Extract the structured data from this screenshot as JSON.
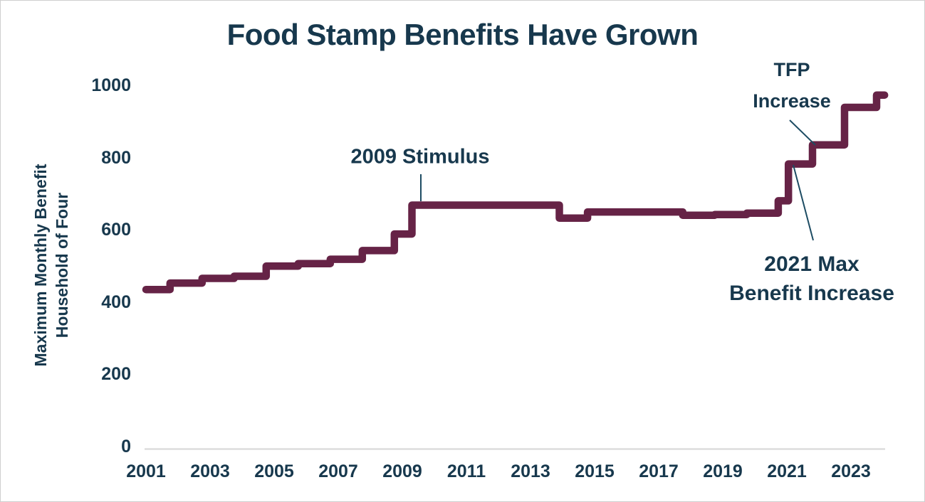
{
  "colors": {
    "text": "#17384d",
    "line": "#662346",
    "leader": "#1d4c63",
    "axis_line": "#d9d9d9",
    "background": "#ffffff"
  },
  "chart_data": {
    "type": "line",
    "style": "step",
    "title": "Food Stamp Benefits Have Grown",
    "ylabel": "Maximum Monthly Benefit Household of Four",
    "ylabel_lines": [
      "Maximum Monthly Benefit",
      "Household of Four"
    ],
    "xlabel": "",
    "xlim": [
      2001,
      2024.1
    ],
    "ylim": [
      0,
      1000
    ],
    "grid": false,
    "legend": false,
    "x_ticks": [
      2001,
      2003,
      2005,
      2007,
      2009,
      2011,
      2013,
      2015,
      2017,
      2019,
      2021,
      2023
    ],
    "y_ticks": [
      0,
      200,
      400,
      600,
      800,
      1000
    ],
    "line_color": "#662346",
    "steps": [
      {
        "start": 2001.0,
        "end": 2001.75,
        "value": 434
      },
      {
        "start": 2001.75,
        "end": 2002.75,
        "value": 452
      },
      {
        "start": 2002.75,
        "end": 2003.75,
        "value": 465
      },
      {
        "start": 2003.75,
        "end": 2004.75,
        "value": 471
      },
      {
        "start": 2004.75,
        "end": 2005.75,
        "value": 499
      },
      {
        "start": 2005.75,
        "end": 2006.75,
        "value": 506
      },
      {
        "start": 2006.75,
        "end": 2007.75,
        "value": 518
      },
      {
        "start": 2007.75,
        "end": 2008.75,
        "value": 542
      },
      {
        "start": 2008.75,
        "end": 2009.3,
        "value": 588
      },
      {
        "start": 2009.3,
        "end": 2013.9,
        "value": 668
      },
      {
        "start": 2013.9,
        "end": 2014.78,
        "value": 632
      },
      {
        "start": 2014.78,
        "end": 2017.75,
        "value": 649
      },
      {
        "start": 2017.75,
        "end": 2018.75,
        "value": 640
      },
      {
        "start": 2018.75,
        "end": 2019.75,
        "value": 642
      },
      {
        "start": 2019.75,
        "end": 2020.73,
        "value": 646
      },
      {
        "start": 2020.73,
        "end": 2021.05,
        "value": 680
      },
      {
        "start": 2021.05,
        "end": 2021.8,
        "value": 782
      },
      {
        "start": 2021.8,
        "end": 2022.8,
        "value": 835
      },
      {
        "start": 2022.8,
        "end": 2023.8,
        "value": 939
      },
      {
        "start": 2023.8,
        "end": 2024.05,
        "value": 973
      }
    ],
    "annotations": [
      {
        "lines": [
          "2009 Stimulus"
        ],
        "points_to": {
          "x": 2009.5,
          "y": 668
        }
      },
      {
        "lines": [
          "TFP",
          "Increase"
        ],
        "points_to": {
          "x": 2021.9,
          "y": 835
        }
      },
      {
        "lines": [
          "2021 Max",
          "Benefit Increase"
        ],
        "points_to": {
          "x": 2021.15,
          "y": 782
        }
      }
    ]
  }
}
